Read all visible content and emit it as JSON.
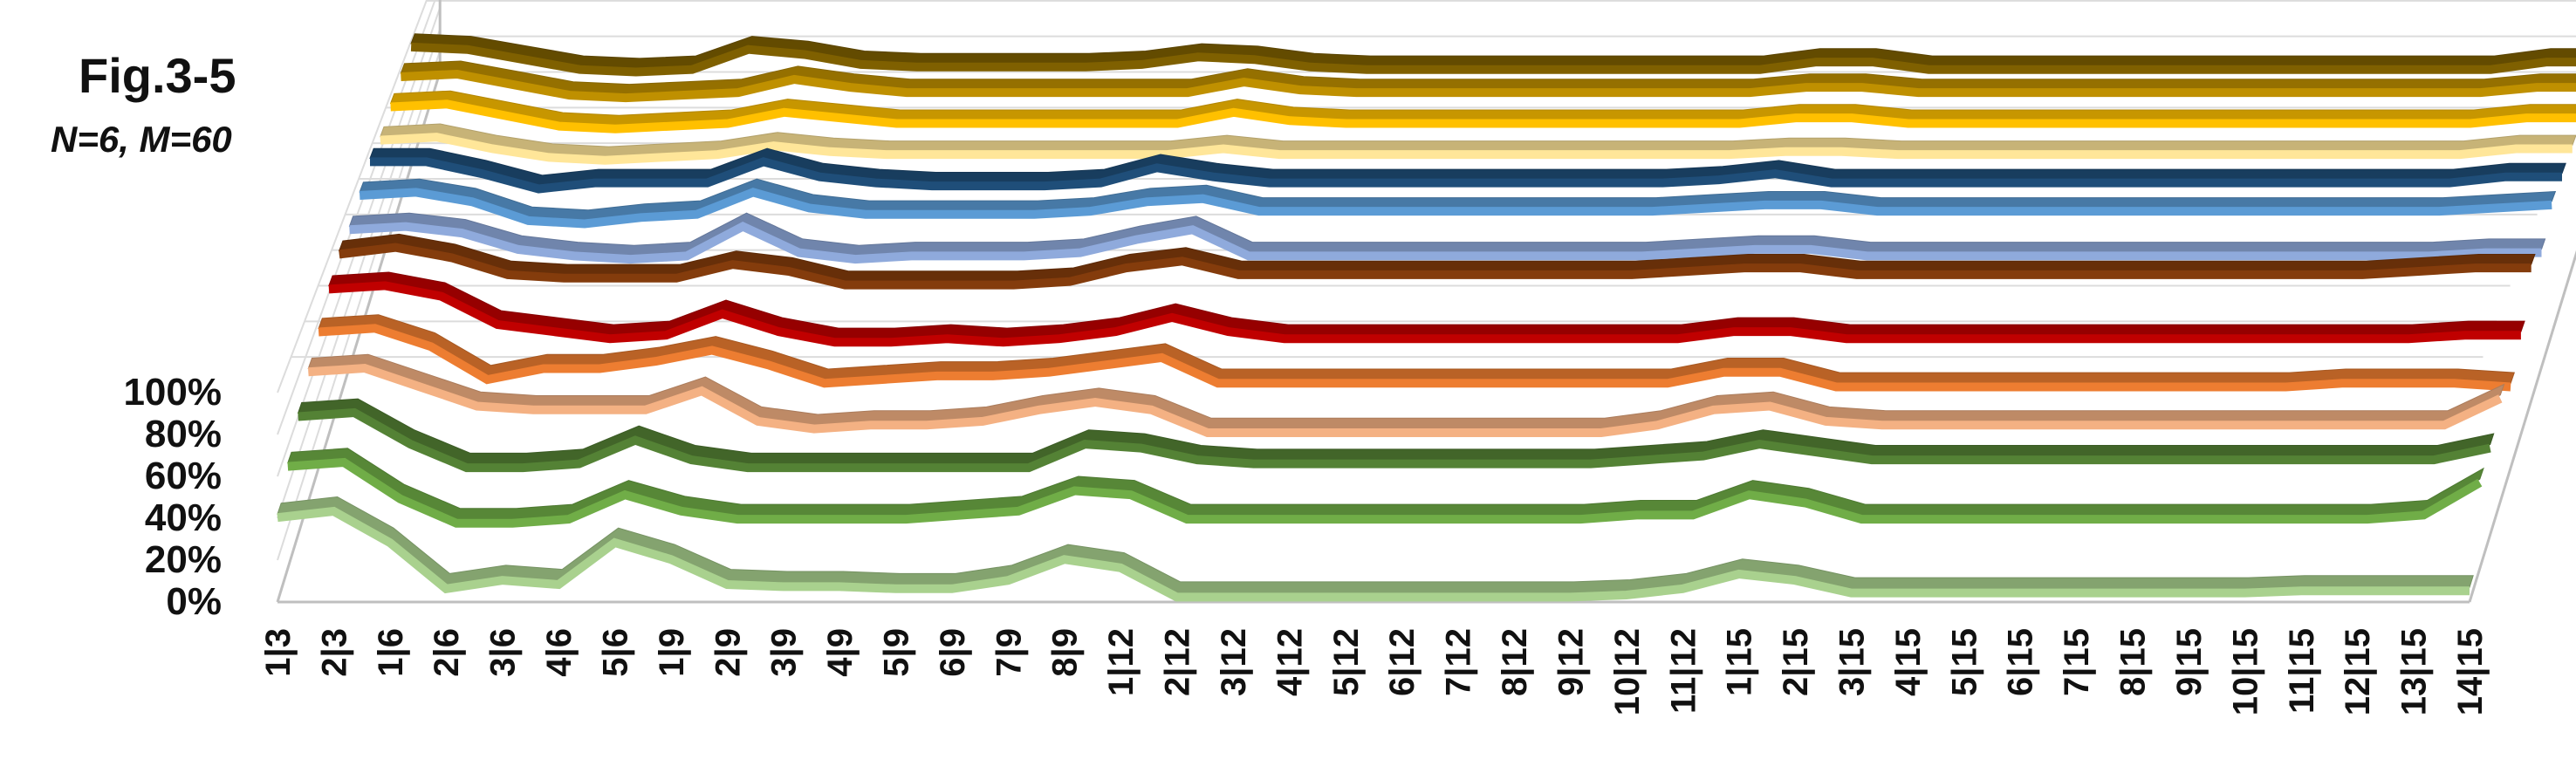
{
  "figure": {
    "title": "Fig.3-5",
    "subtitle": "N=6, M=60"
  },
  "chart_data": {
    "type": "line",
    "view": "3d-stacked-ribbons",
    "title": "Fig.3-5",
    "subtitle": "N=6, M=60",
    "xlabel": "",
    "ylabel": "",
    "ylim": [
      0,
      100
    ],
    "y_ticks": [
      "0%",
      "20%",
      "40%",
      "60%",
      "80%",
      "100%"
    ],
    "grid": true,
    "legend": "none",
    "categories": [
      "1|3",
      "2|3",
      "1|6",
      "2|6",
      "3|6",
      "4|6",
      "5|6",
      "1|9",
      "2|9",
      "3|9",
      "4|9",
      "5|9",
      "6|9",
      "7|9",
      "8|9",
      "1|12",
      "2|12",
      "3|12",
      "4|12",
      "5|12",
      "6|12",
      "7|12",
      "8|12",
      "9|12",
      "10|12",
      "11|12",
      "1|15",
      "2|15",
      "3|15",
      "4|15",
      "5|15",
      "6|15",
      "7|15",
      "8|15",
      "9|15",
      "10|15",
      "11|15",
      "12|15",
      "13|15",
      "14|15"
    ],
    "series": [
      {
        "color": "#a9d18e",
        "values": [
          42,
          45,
          30,
          8,
          12,
          10,
          30,
          22,
          10,
          9,
          9,
          8,
          8,
          12,
          22,
          18,
          4,
          4,
          4,
          4,
          4,
          4,
          4,
          4,
          5,
          8,
          15,
          12,
          6,
          6,
          6,
          6,
          6,
          6,
          6,
          6,
          7,
          7,
          7,
          7
        ]
      },
      {
        "color": "#70ad47",
        "values": [
          52,
          54,
          36,
          24,
          24,
          26,
          38,
          30,
          26,
          26,
          26,
          26,
          28,
          30,
          40,
          38,
          26,
          26,
          26,
          26,
          26,
          26,
          26,
          26,
          28,
          28,
          38,
          34,
          26,
          26,
          26,
          26,
          26,
          26,
          26,
          26,
          26,
          26,
          28,
          44
        ]
      },
      {
        "color": "#548235",
        "values": [
          62,
          64,
          48,
          36,
          36,
          38,
          50,
          40,
          36,
          36,
          36,
          36,
          36,
          36,
          48,
          46,
          40,
          38,
          38,
          38,
          38,
          38,
          38,
          38,
          40,
          42,
          48,
          44,
          40,
          40,
          40,
          40,
          40,
          40,
          40,
          40,
          40,
          40,
          40,
          46
        ]
      },
      {
        "color": "#f4b183",
        "values": [
          70,
          72,
          62,
          52,
          50,
          50,
          50,
          60,
          44,
          40,
          42,
          42,
          44,
          50,
          54,
          50,
          38,
          38,
          38,
          38,
          38,
          38,
          38,
          38,
          42,
          50,
          52,
          44,
          42,
          42,
          42,
          42,
          42,
          42,
          42,
          42,
          42,
          42,
          42,
          56
        ]
      },
      {
        "color": "#ed7d31",
        "values": [
          76,
          78,
          68,
          50,
          56,
          56,
          60,
          66,
          58,
          48,
          50,
          52,
          52,
          54,
          58,
          62,
          48,
          48,
          48,
          48,
          48,
          48,
          48,
          48,
          48,
          54,
          54,
          46,
          46,
          46,
          46,
          46,
          46,
          46,
          46,
          46,
          48,
          48,
          48,
          46
        ]
      },
      {
        "color": "#c00000",
        "values": [
          84,
          86,
          80,
          64,
          60,
          56,
          58,
          70,
          60,
          54,
          54,
          56,
          54,
          56,
          60,
          68,
          60,
          56,
          56,
          56,
          56,
          56,
          56,
          56,
          56,
          60,
          60,
          56,
          56,
          56,
          56,
          56,
          56,
          56,
          56,
          56,
          56,
          56,
          58,
          58
        ]
      },
      {
        "color": "#843c0c",
        "values": [
          88,
          92,
          86,
          76,
          74,
          74,
          74,
          82,
          78,
          70,
          70,
          70,
          70,
          72,
          80,
          84,
          76,
          76,
          76,
          76,
          76,
          76,
          76,
          76,
          78,
          80,
          80,
          76,
          76,
          76,
          76,
          76,
          76,
          76,
          76,
          76,
          76,
          78,
          80,
          80
        ]
      },
      {
        "color": "#8faadc",
        "values": [
          86,
          88,
          84,
          74,
          70,
          68,
          70,
          88,
          72,
          68,
          70,
          70,
          70,
          72,
          80,
          86,
          70,
          70,
          70,
          70,
          70,
          70,
          70,
          70,
          72,
          74,
          74,
          70,
          70,
          70,
          70,
          70,
          70,
          70,
          70,
          70,
          70,
          70,
          72,
          72
        ]
      },
      {
        "color": "#5b9bd5",
        "values": [
          90,
          92,
          86,
          74,
          72,
          76,
          78,
          92,
          82,
          78,
          78,
          78,
          78,
          80,
          86,
          88,
          80,
          80,
          80,
          80,
          80,
          80,
          80,
          80,
          82,
          84,
          84,
          80,
          80,
          80,
          80,
          80,
          80,
          80,
          80,
          80,
          80,
          80,
          82,
          84
        ]
      },
      {
        "color": "#1f4e79",
        "values": [
          94,
          94,
          86,
          76,
          80,
          80,
          80,
          94,
          84,
          80,
          78,
          78,
          78,
          80,
          90,
          84,
          80,
          80,
          80,
          80,
          80,
          80,
          80,
          80,
          82,
          86,
          80,
          80,
          80,
          80,
          80,
          80,
          80,
          80,
          80,
          80,
          80,
          80,
          84,
          84
        ]
      },
      {
        "color": "#ffe699",
        "values": [
          90,
          92,
          84,
          78,
          76,
          78,
          80,
          86,
          82,
          80,
          80,
          80,
          80,
          80,
          80,
          84,
          80,
          80,
          80,
          80,
          80,
          80,
          80,
          80,
          80,
          82,
          82,
          80,
          80,
          80,
          80,
          80,
          80,
          80,
          80,
          80,
          80,
          80,
          84,
          84
        ]
      },
      {
        "color": "#ffc000",
        "values": [
          94,
          96,
          88,
          80,
          78,
          80,
          82,
          90,
          86,
          82,
          82,
          82,
          82,
          82,
          82,
          90,
          84,
          82,
          82,
          82,
          82,
          82,
          82,
          82,
          82,
          86,
          86,
          82,
          82,
          82,
          82,
          82,
          82,
          82,
          82,
          82,
          82,
          82,
          86,
          86
        ]
      },
      {
        "color": "#bf9000",
        "values": [
          96,
          98,
          90,
          82,
          80,
          82,
          84,
          94,
          88,
          84,
          84,
          84,
          84,
          84,
          84,
          92,
          86,
          84,
          84,
          84,
          84,
          84,
          84,
          84,
          84,
          88,
          88,
          84,
          84,
          84,
          84,
          84,
          84,
          84,
          84,
          84,
          84,
          84,
          88,
          88
        ]
      },
      {
        "color": "#7f6000",
        "values": [
          98,
          96,
          88,
          80,
          78,
          80,
          96,
          92,
          84,
          82,
          82,
          82,
          82,
          84,
          90,
          88,
          82,
          80,
          80,
          80,
          80,
          80,
          80,
          80,
          80,
          86,
          86,
          80,
          80,
          80,
          80,
          80,
          80,
          80,
          80,
          80,
          80,
          80,
          86,
          86
        ]
      }
    ]
  }
}
